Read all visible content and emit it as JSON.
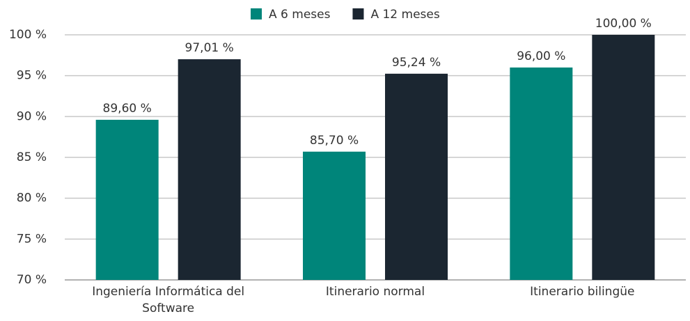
{
  "chart_data": {
    "type": "bar",
    "categories": [
      "Ingeniería Informática del Software",
      "Itinerario normal",
      "Itinerario bilingüe"
    ],
    "series": [
      {
        "name": "A 6 meses",
        "color": "#00857a",
        "values": [
          89.6,
          85.7,
          96
        ],
        "value_labels": [
          "89,60 %",
          "85,70 %",
          "96,00 %"
        ]
      },
      {
        "name": "A 12 meses",
        "color": "#1b2631",
        "values": [
          97.01,
          95.24,
          100
        ],
        "value_labels": [
          "97,01 %",
          "95,24 %",
          "100,00 %"
        ]
      }
    ],
    "ylim": [
      70,
      100
    ],
    "yticks": [
      {
        "value": 70,
        "label": "70 %"
      },
      {
        "value": 75,
        "label": "75 %"
      },
      {
        "value": 80,
        "label": "80 %"
      },
      {
        "value": 85,
        "label": "85 %"
      },
      {
        "value": 90,
        "label": "90 %"
      },
      {
        "value": 95,
        "label": "95 %"
      },
      {
        "value": 100,
        "label": "100 %"
      }
    ],
    "grid": true,
    "legend": "top"
  }
}
